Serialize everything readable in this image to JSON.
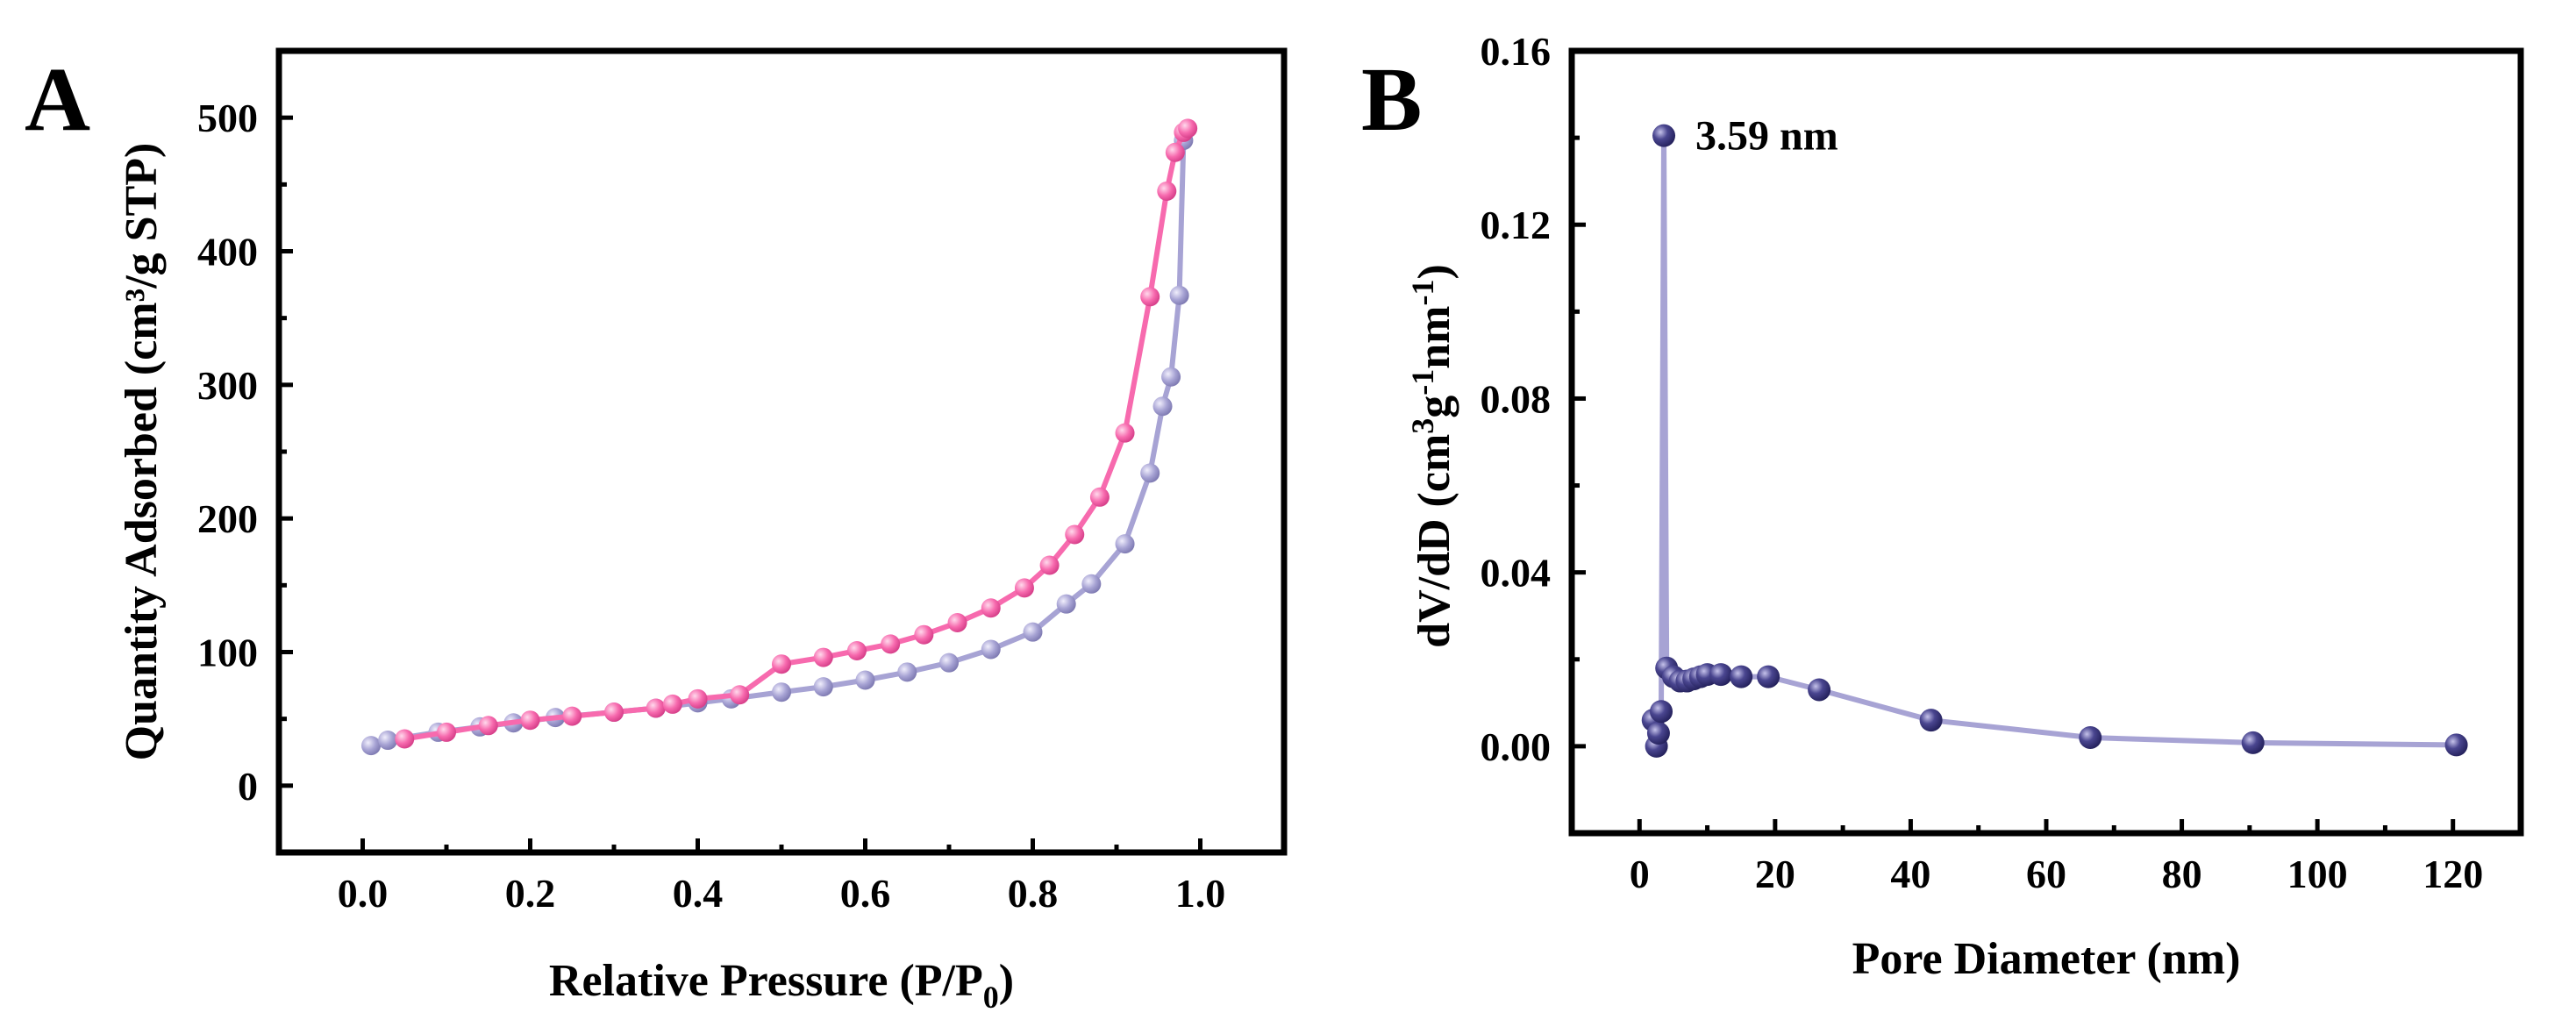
{
  "chart_data": [
    {
      "panel": "A",
      "type": "line",
      "xlabel_main": "Relative Pressure (P/P",
      "xlabel_sub": "0",
      "xlabel_tail": ")",
      "ylabel": "Quantity Adsorbed (cm³/g STP)",
      "xlim": [
        -0.1,
        1.1
      ],
      "ylim": [
        -50,
        550
      ],
      "xticks": [
        "0.0",
        "0.2",
        "0.4",
        "0.6",
        "0.8",
        "1.0"
      ],
      "yticks": [
        "0",
        "100",
        "200",
        "300",
        "400",
        "500"
      ],
      "grid": false,
      "series": [
        {
          "color": "#a7a3d4",
          "x": [
            0.01,
            0.03,
            0.09,
            0.14,
            0.18,
            0.23,
            0.3,
            0.35,
            0.4,
            0.44,
            0.5,
            0.55,
            0.6,
            0.65,
            0.7,
            0.75,
            0.8,
            0.84,
            0.87,
            0.91,
            0.94,
            0.955,
            0.965,
            0.975,
            0.98
          ],
          "y": [
            30,
            34,
            40,
            44,
            47,
            51,
            55,
            58,
            62,
            65,
            70,
            74,
            79,
            85,
            92,
            102,
            115,
            136,
            151,
            181,
            234,
            284,
            306,
            367,
            483
          ]
        },
        {
          "color": "#f76aae",
          "x": [
            0.05,
            0.1,
            0.15,
            0.2,
            0.25,
            0.3,
            0.35,
            0.37,
            0.4,
            0.45,
            0.5,
            0.55,
            0.59,
            0.63,
            0.67,
            0.71,
            0.75,
            0.79,
            0.82,
            0.85,
            0.88,
            0.91,
            0.94,
            0.96,
            0.97,
            0.98,
            0.985
          ],
          "y": [
            35,
            40,
            45,
            49,
            52,
            55,
            58,
            61,
            65,
            68,
            91,
            96,
            101,
            106,
            113,
            122,
            133,
            148,
            165,
            188,
            216,
            264,
            366,
            445,
            474,
            489,
            492
          ]
        }
      ]
    },
    {
      "panel": "B",
      "type": "line",
      "xlabel": "Pore Diameter (nm)",
      "ylabel_parts": [
        "dV/dD (cm",
        "3",
        "g",
        "-1",
        "nm",
        "-1",
        ")"
      ],
      "xlim": [
        -10,
        130
      ],
      "ylim": [
        -0.02,
        0.16
      ],
      "xticks": [
        "0",
        "20",
        "40",
        "60",
        "80",
        "100",
        "120"
      ],
      "yticks": [
        "0.00",
        "0.04",
        "0.08",
        "0.12",
        "0.16"
      ],
      "grid": false,
      "annotation": "3.59 nm",
      "series": [
        {
          "color": "#a7a3d4",
          "marker_color": "#4a4690",
          "x": [
            2.0,
            2.5,
            2.8,
            3.2,
            3.59,
            4.0,
            5.0,
            6.0,
            7.0,
            8.0,
            9.0,
            10.0,
            12.0,
            15.0,
            19.0,
            26.5,
            43.0,
            66.5,
            90.5,
            120.5
          ],
          "y": [
            0.006,
            0.0,
            0.003,
            0.008,
            0.1405,
            0.018,
            0.016,
            0.015,
            0.015,
            0.0155,
            0.016,
            0.0165,
            0.0165,
            0.016,
            0.016,
            0.013,
            0.006,
            0.002,
            0.0008,
            0.0003
          ]
        }
      ]
    }
  ]
}
